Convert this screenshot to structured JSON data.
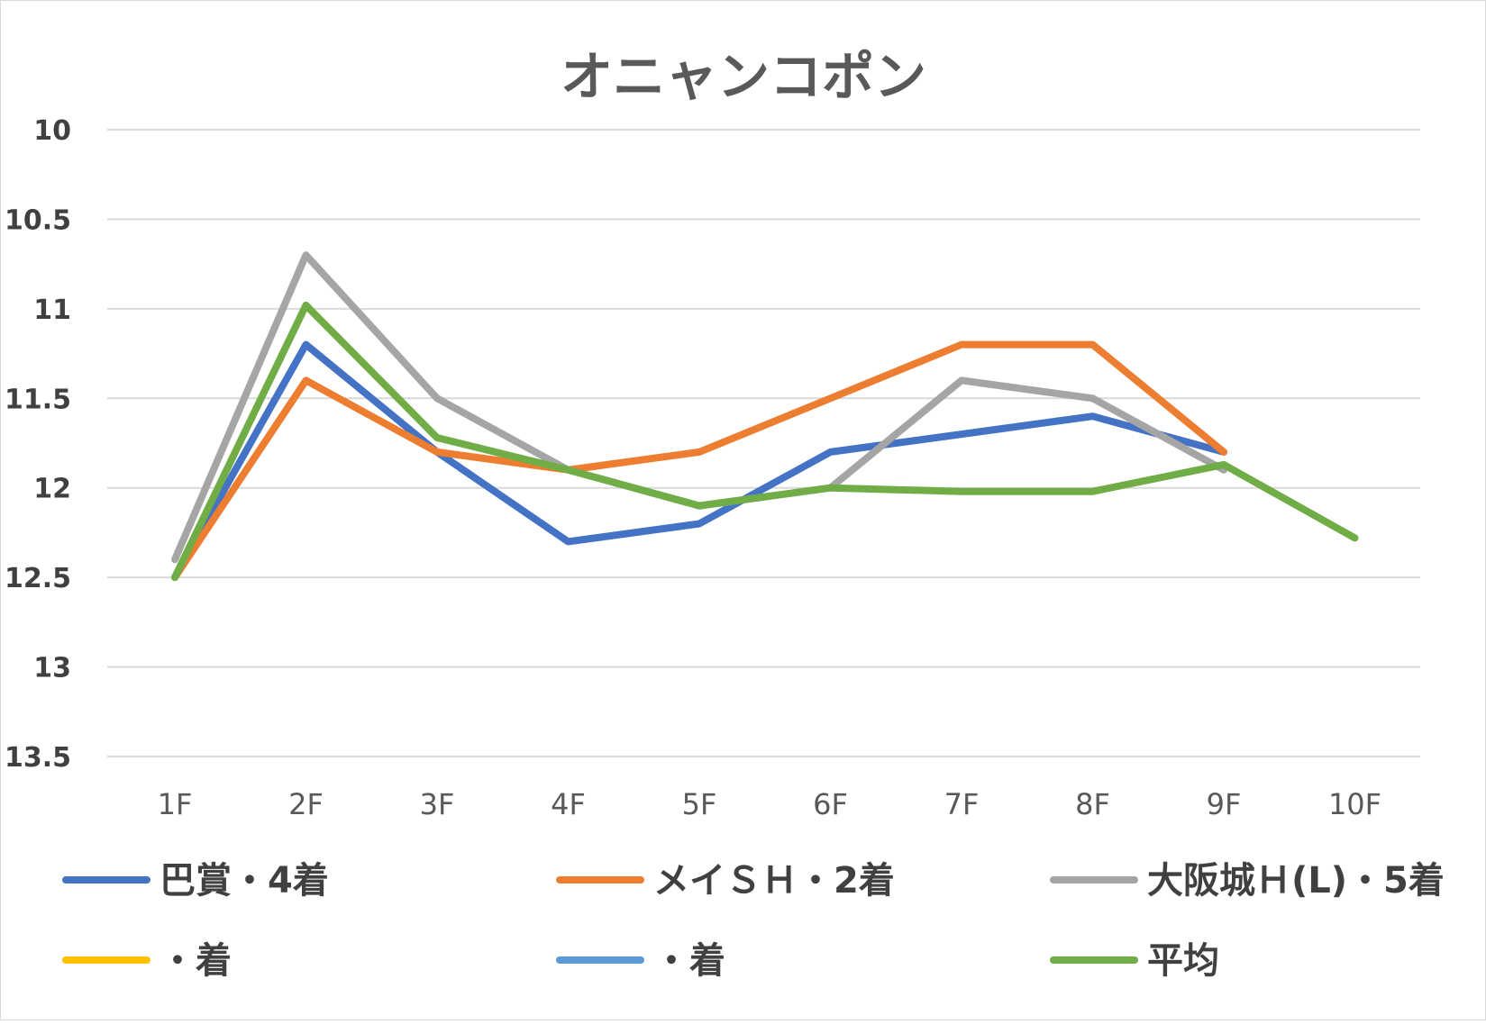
{
  "chart_data": {
    "type": "line",
    "title": "オニャンコポン",
    "xlabel": "",
    "ylabel": "",
    "categories": [
      "1F",
      "2F",
      "3F",
      "4F",
      "5F",
      "6F",
      "7F",
      "8F",
      "9F",
      "10F"
    ],
    "ylim": [
      10,
      13.5
    ],
    "y_inverted": true,
    "yticks": [
      "10",
      "10.5",
      "11",
      "11.5",
      "12",
      "12.5",
      "13",
      "13.5"
    ],
    "grid": true,
    "legend_position": "bottom",
    "series": [
      {
        "name": "巴賞・4着",
        "color": "#4472c4",
        "values": [
          12.5,
          11.2,
          11.8,
          12.3,
          12.2,
          11.8,
          11.7,
          11.6,
          11.8,
          null
        ]
      },
      {
        "name": "メイＳＨ・2着",
        "color": "#ed7d31",
        "values": [
          12.5,
          11.4,
          11.8,
          11.9,
          11.8,
          11.5,
          11.2,
          11.2,
          11.8,
          null
        ]
      },
      {
        "name": "大阪城Ｈ(L)・5着",
        "color": "#a5a5a5",
        "values": [
          12.4,
          10.7,
          11.5,
          11.9,
          12.1,
          12.0,
          11.4,
          11.5,
          11.9,
          null
        ]
      },
      {
        "name": "・着",
        "color": "#ffc000",
        "values": [
          null,
          null,
          null,
          null,
          null,
          null,
          null,
          null,
          null,
          null
        ]
      },
      {
        "name": "・着",
        "color": "#5b9bd5",
        "values": [
          null,
          null,
          null,
          null,
          null,
          null,
          null,
          null,
          null,
          null
        ]
      },
      {
        "name": "平均",
        "color": "#70ad47",
        "values": [
          12.5,
          10.98,
          11.72,
          11.9,
          12.1,
          12.0,
          12.02,
          12.02,
          11.87,
          12.28
        ]
      }
    ]
  }
}
